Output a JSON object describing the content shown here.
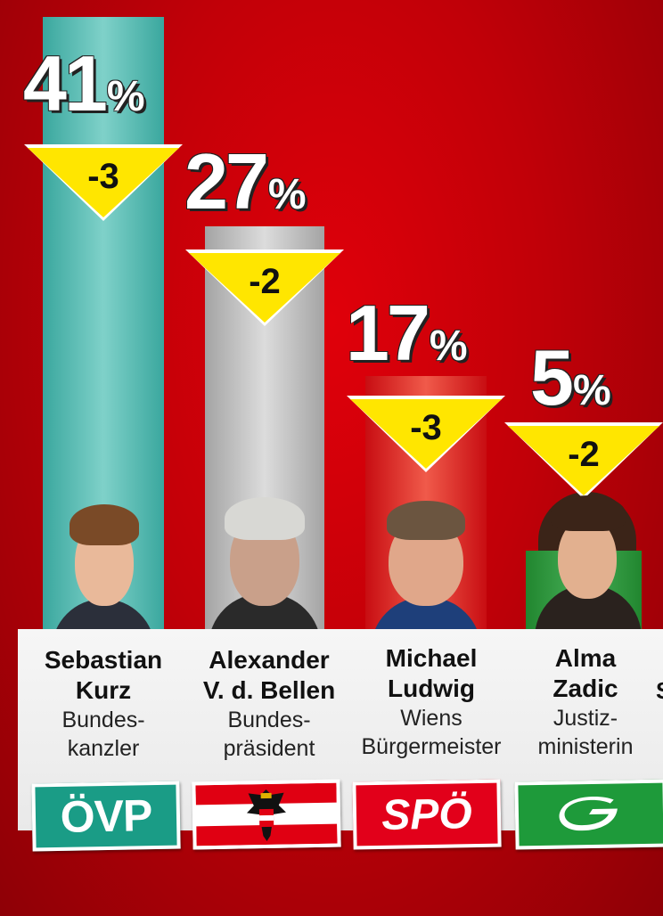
{
  "chart_data": {
    "type": "bar",
    "categories": [
      "Sebastian Kurz",
      "Alexander V. d. Bellen",
      "Michael Ludwig",
      "Alma Zadic"
    ],
    "values": [
      41,
      27,
      17,
      5
    ],
    "changes": [
      "-3",
      "-2",
      "-3",
      "-2"
    ],
    "unit": "%",
    "ylim": [
      0,
      45
    ],
    "colors": [
      "#46b5ac",
      "#b9b9b9",
      "#de1d1d",
      "#2c9c3e"
    ]
  },
  "people": [
    {
      "name_line1": "Sebastian",
      "name_line2": "Kurz",
      "role_line1": "Bundes-",
      "role_line2": "kanzler",
      "logo": "ÖVP",
      "logo_color": "#1a9c86"
    },
    {
      "name_line1": "Alexander",
      "name_line2": "V. d. Bellen",
      "role_line1": "Bundes-",
      "role_line2": "präsident",
      "logo": "austria-flag-eagle-icon",
      "logo_color": "#e00012"
    },
    {
      "name_line1": "Michael",
      "name_line2": "Ludwig",
      "role_line1": "Wiens",
      "role_line2": "Bürgermeister",
      "logo": "SPÖ",
      "logo_color": "#e2001a"
    },
    {
      "name_line1": "Alma",
      "name_line2": "Zadic",
      "role_line1": "Justiz-",
      "role_line2": "ministerin",
      "logo": "greens-g-icon",
      "logo_color": "#1e9a3a"
    }
  ],
  "cutoff_letter": "S"
}
